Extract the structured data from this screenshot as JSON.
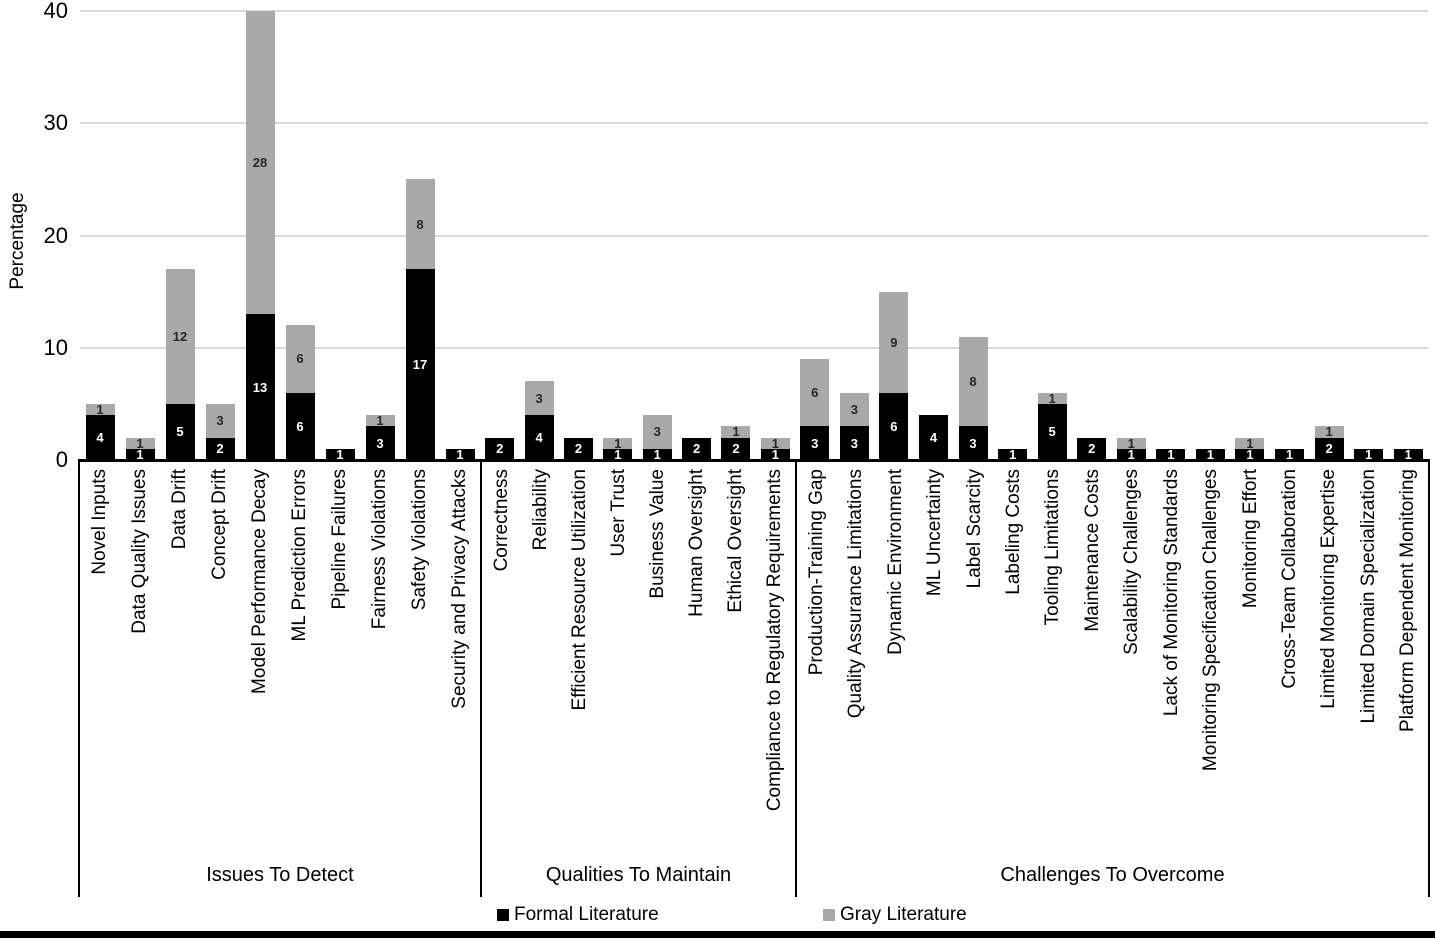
{
  "chart_data": {
    "type": "bar",
    "stacked": true,
    "title": "",
    "xlabel": "",
    "ylabel": "Percentage",
    "ylim": [
      0,
      40
    ],
    "yticks": [
      0,
      10,
      20,
      30,
      40
    ],
    "grid": true,
    "legend_position": "bottom",
    "series_names": [
      "Formal Literature",
      "Gray Literature"
    ],
    "legend": [
      {
        "label": "Formal Literature",
        "color": "#000000"
      },
      {
        "label": "Gray Literature",
        "color": "#a9a9a9"
      }
    ],
    "colors": {
      "formal_bar": "#000000",
      "gray_bar": "#a9a9a9",
      "gridline": "#d9d9d9",
      "axis_line": "#000000",
      "label_on_black": "#ffffff",
      "label_on_gray": "#262626"
    },
    "groups": [
      {
        "label": "Issues To Detect",
        "categories": [
          "Novel Inputs",
          "Data Quality Issues",
          "Data Drift",
          "Concept Drift",
          "Model Performance Decay",
          "ML Prediction Errors",
          "Pipeline Failures",
          "Fairness Violations",
          "Safety Violations",
          "Security and Privacy Attacks"
        ],
        "series": [
          {
            "name": "Formal Literature",
            "values": [
              4,
              1,
              5,
              2,
              13,
              6,
              1,
              3,
              17,
              1
            ]
          },
          {
            "name": "Gray Literature",
            "values": [
              1,
              1,
              12,
              3,
              28,
              6,
              0,
              1,
              8,
              0
            ]
          }
        ]
      },
      {
        "label": "Qualities To Maintain",
        "categories": [
          "Correctness",
          "Reliability",
          "Efficient Resource Utilization",
          "User Trust",
          "Business Value",
          "Human Oversight",
          "Ethical Oversight",
          "Compliance to Regulatory Requirements"
        ],
        "series": [
          {
            "name": "Formal Literature",
            "values": [
              2,
              4,
              2,
              1,
              1,
              2,
              2,
              1
            ]
          },
          {
            "name": "Gray Literature",
            "values": [
              0,
              3,
              0,
              1,
              3,
              0,
              1,
              1
            ]
          }
        ]
      },
      {
        "label": "Challenges To Overcome",
        "categories": [
          "Production-Training Gap",
          "Quality Assurance Limitations",
          "Dynamic Environment",
          "ML Uncertainty",
          "Label Scarcity",
          "Labeling Costs",
          "Tooling Limitations",
          "Maintenance Costs",
          "Scalability Challenges",
          "Lack of Monitoring Standards",
          "Monitoring Specification Challenges",
          "Monitoring Effort",
          "Cross-Team Collaboration",
          "Limited Monitoring Expertise",
          "Limited Domain Specialization",
          "Platform Dependent Monitoring"
        ],
        "series": [
          {
            "name": "Formal Literature",
            "values": [
              3,
              3,
              6,
              4,
              3,
              1,
              5,
              2,
              1,
              1,
              1,
              1,
              1,
              2,
              1,
              1
            ]
          },
          {
            "name": "Gray Literature",
            "values": [
              6,
              3,
              9,
              0,
              8,
              0,
              1,
              0,
              1,
              0,
              0,
              1,
              0,
              1,
              0,
              0
            ]
          }
        ]
      }
    ]
  }
}
